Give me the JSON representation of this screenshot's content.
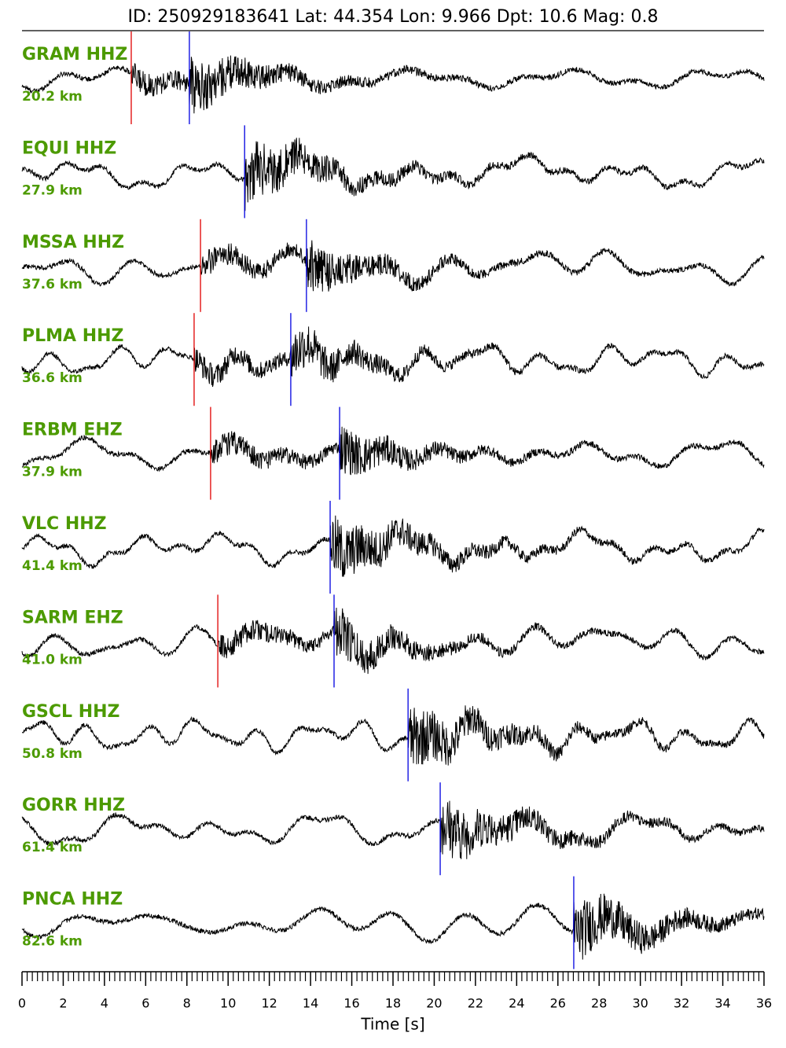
{
  "chart_data": {
    "type": "seismogram",
    "title": "ID: 250929183641 Lat:  44.354 Lon:   9.966 Dpt:    10.6 Mag:   0.8",
    "xlabel": "Time [s]",
    "xlim": [
      0,
      36
    ],
    "xticks": [
      0,
      2,
      4,
      6,
      8,
      10,
      12,
      14,
      16,
      18,
      20,
      22,
      24,
      26,
      28,
      30,
      32,
      34,
      36
    ],
    "p_color": "#e00000",
    "s_color": "#0000e0",
    "label_color": "#4c9a00",
    "trace_color": "#000000",
    "stations": [
      {
        "name": "GRAM HHZ",
        "distance": "20.2 km",
        "p_pick": 5.3,
        "s_pick": 8.12
      },
      {
        "name": "EQUI HHZ",
        "distance": "27.9 km",
        "p_pick": null,
        "s_pick": 10.8
      },
      {
        "name": "MSSA HHZ",
        "distance": "37.6 km",
        "p_pick": 8.66,
        "s_pick": 13.8
      },
      {
        "name": "PLMA HHZ",
        "distance": "36.6 km",
        "p_pick": 8.35,
        "s_pick": 13.04
      },
      {
        "name": "ERBM EHZ",
        "distance": "37.9 km",
        "p_pick": 9.15,
        "s_pick": 15.41
      },
      {
        "name": "VLC HHZ",
        "distance": "41.4 km",
        "p_pick": null,
        "s_pick": 14.95
      },
      {
        "name": "SARM EHZ",
        "distance": "41.0 km",
        "p_pick": 9.5,
        "s_pick": 15.14
      },
      {
        "name": "GSCL HHZ",
        "distance": "50.8 km",
        "p_pick": null,
        "s_pick": 18.73
      },
      {
        "name": "GORR HHZ",
        "distance": "61.4 km",
        "p_pick": null,
        "s_pick": 20.29
      },
      {
        "name": "PNCA HHZ",
        "distance": "82.6 km",
        "p_pick": null,
        "s_pick": 26.77
      }
    ]
  }
}
